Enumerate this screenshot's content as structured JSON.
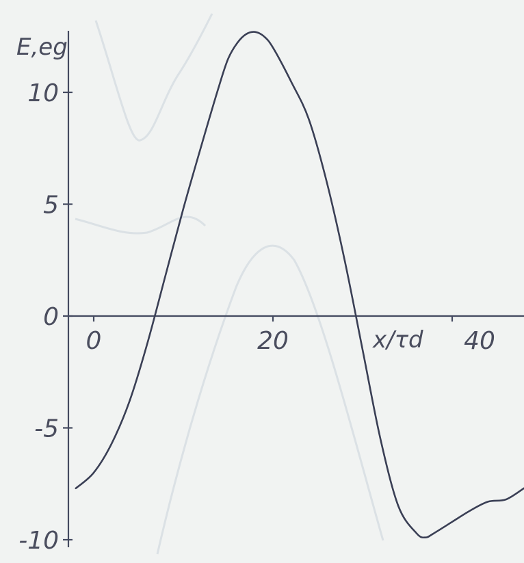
{
  "chart_data": {
    "type": "line",
    "title": "",
    "ylabel": "E,eg",
    "xlabel": "x/τd",
    "xlim": [
      -2,
      48
    ],
    "ylim": [
      -10,
      12.5
    ],
    "x_ticks": [
      0,
      20,
      40
    ],
    "x_tick_labels": [
      "0",
      "20",
      "40"
    ],
    "y_ticks": [
      -10,
      -5,
      0,
      5,
      10
    ],
    "y_tick_labels": [
      "-10",
      "-5",
      "0",
      "5",
      "10"
    ],
    "grid": false,
    "legend": "none",
    "colors": {
      "curve": "#3a3f55",
      "axis": "#444a60",
      "background": "#f1f3f2"
    },
    "series": [
      {
        "x": [
          -2,
          0,
          2,
          4,
          6,
          8,
          10,
          12,
          14,
          15,
          16,
          17,
          18,
          19,
          20,
          22,
          24,
          26,
          28,
          30,
          32,
          34,
          36,
          37,
          38,
          40,
          42,
          44,
          46,
          48
        ],
        "values": [
          -7.7,
          -7.0,
          -5.7,
          -3.8,
          -1.2,
          1.8,
          4.8,
          7.6,
          10.3,
          11.5,
          12.2,
          12.6,
          12.7,
          12.5,
          12.0,
          10.5,
          8.8,
          6.0,
          2.5,
          -1.5,
          -5.5,
          -8.5,
          -9.7,
          -9.9,
          -9.7,
          -9.2,
          -8.7,
          -8.3,
          -8.2,
          -7.7
        ]
      }
    ]
  }
}
